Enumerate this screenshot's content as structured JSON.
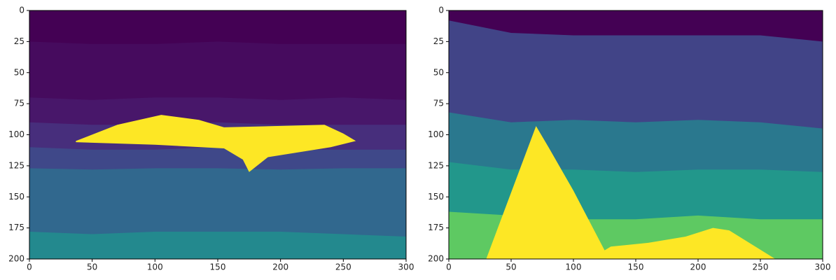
{
  "chart_data": [
    {
      "type": "image",
      "xlim": [
        0,
        300
      ],
      "ylim": [
        200,
        0
      ],
      "xticks": [
        0,
        50,
        100,
        150,
        200,
        250,
        300
      ],
      "yticks": [
        0,
        25,
        50,
        75,
        100,
        125,
        150,
        175,
        200
      ],
      "x": [
        0,
        50,
        100,
        150,
        200,
        250,
        300
      ],
      "series": [
        {
          "color": "#440154",
          "values": [
            0,
            0,
            0,
            0,
            0,
            0,
            0
          ]
        },
        {
          "color": "#460b5e",
          "values": [
            25,
            27,
            27,
            25,
            27,
            27,
            27
          ]
        },
        {
          "color": "#48176a",
          "values": [
            70,
            72,
            70,
            70,
            72,
            70,
            72
          ]
        },
        {
          "color": "#472e7c",
          "values": [
            90,
            92,
            92,
            90,
            92,
            92,
            92
          ]
        },
        {
          "color": "#3f4889",
          "values": [
            110,
            112,
            112,
            110,
            112,
            112,
            112
          ]
        },
        {
          "color": "#31688e",
          "values": [
            127,
            128,
            127,
            127,
            128,
            127,
            127
          ]
        },
        {
          "color": "#23898e",
          "values": [
            178,
            180,
            178,
            178,
            178,
            180,
            182
          ]
        }
      ],
      "body": {
        "color": "#fde725",
        "x": [
          37,
          70,
          105,
          135,
          155,
          235,
          250,
          260,
          240,
          190,
          175,
          170,
          155,
          100,
          37
        ],
        "values": [
          105,
          92,
          84,
          88,
          94,
          92,
          99,
          105,
          110,
          118,
          130,
          120,
          111,
          108,
          106
        ]
      }
    },
    {
      "type": "image",
      "xlim": [
        0,
        300
      ],
      "ylim": [
        200,
        0
      ],
      "xticks": [
        0,
        50,
        100,
        150,
        200,
        250,
        300
      ],
      "yticks": [
        0,
        25,
        50,
        75,
        100,
        125,
        150,
        175,
        200
      ],
      "x": [
        0,
        50,
        100,
        150,
        200,
        250,
        300
      ],
      "series": [
        {
          "color": "#440154",
          "values": [
            0,
            0,
            0,
            0,
            0,
            0,
            0
          ]
        },
        {
          "color": "#414487",
          "values": [
            8,
            18,
            20,
            20,
            20,
            20,
            25
          ]
        },
        {
          "color": "#2a788e",
          "values": [
            82,
            90,
            88,
            90,
            88,
            90,
            95
          ]
        },
        {
          "color": "#22978b",
          "values": [
            122,
            128,
            128,
            130,
            128,
            128,
            130
          ]
        },
        {
          "color": "#5ec962",
          "values": [
            162,
            165,
            168,
            168,
            165,
            168,
            168
          ]
        }
      ],
      "body": {
        "color": "#fde725",
        "x": [
          30,
          70,
          80,
          100,
          125,
          130,
          160,
          190,
          212,
          225,
          262
        ],
        "values": [
          200,
          93,
          110,
          145,
          193,
          190,
          187,
          182,
          175,
          177,
          200
        ]
      }
    }
  ]
}
